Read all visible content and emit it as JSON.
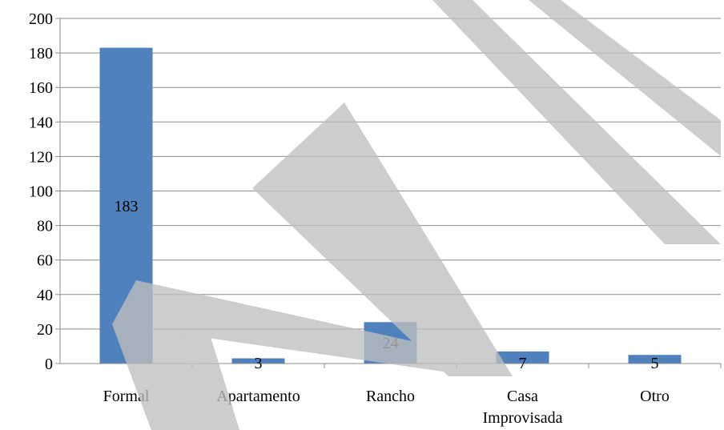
{
  "chart_data": {
    "type": "bar",
    "categories": [
      "Formal",
      "Apartamento",
      "Rancho",
      "Casa Improvisada",
      "Otro"
    ],
    "category_lines": [
      [
        "Formal"
      ],
      [
        "Apartamento"
      ],
      [
        "Rancho"
      ],
      [
        "Casa",
        "Improvisada"
      ],
      [
        "Otro"
      ]
    ],
    "values": [
      183,
      3,
      24,
      7,
      5
    ],
    "ylim": [
      0,
      200
    ],
    "yticks": [
      0,
      20,
      40,
      60,
      80,
      100,
      120,
      140,
      160,
      180,
      200
    ],
    "grid": true,
    "legend": "none",
    "bar_color": "#4f81bd",
    "watermark_color": "#bfbfbf"
  }
}
